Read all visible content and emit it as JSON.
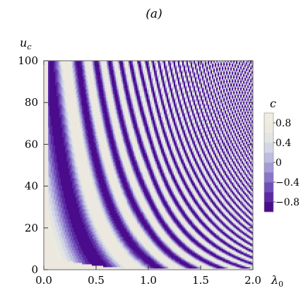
{
  "panel_label": "(a)",
  "chart_data": {
    "type": "heatmap",
    "title": "",
    "xlabel": "λ₀",
    "ylabel": "u_c",
    "xlim": [
      0.0,
      2.0
    ],
    "ylim": [
      0,
      100
    ],
    "x_ticks": [
      "0.0",
      "0.5",
      "1.0",
      "1.5",
      "2.0"
    ],
    "x_tick_values": [
      0.0,
      0.5,
      1.0,
      1.5,
      2.0
    ],
    "y_ticks": [
      "0",
      "20",
      "40",
      "60",
      "80",
      "100"
    ],
    "y_tick_values": [
      0,
      20,
      40,
      60,
      80,
      100
    ],
    "colorbar": {
      "label": "c",
      "range": [
        -1.0,
        1.0
      ],
      "ticks": [
        "0.8",
        "0.4",
        "0",
        "−0.4",
        "−0.8"
      ],
      "tick_values": [
        0.8,
        0.4,
        0,
        -0.4,
        -0.8
      ],
      "colors": [
        "#4b0c8c",
        "#5c2aa2",
        "#7050b8",
        "#8a76c8",
        "#a49ad6",
        "#bdbce0",
        "#d3d6e4",
        "#e2e5e3",
        "#ece9df",
        "#f1ece2"
      ]
    },
    "description_grid": "contour bands of c over (λ₀, u_c); white curves mark the maxima of c"
  }
}
